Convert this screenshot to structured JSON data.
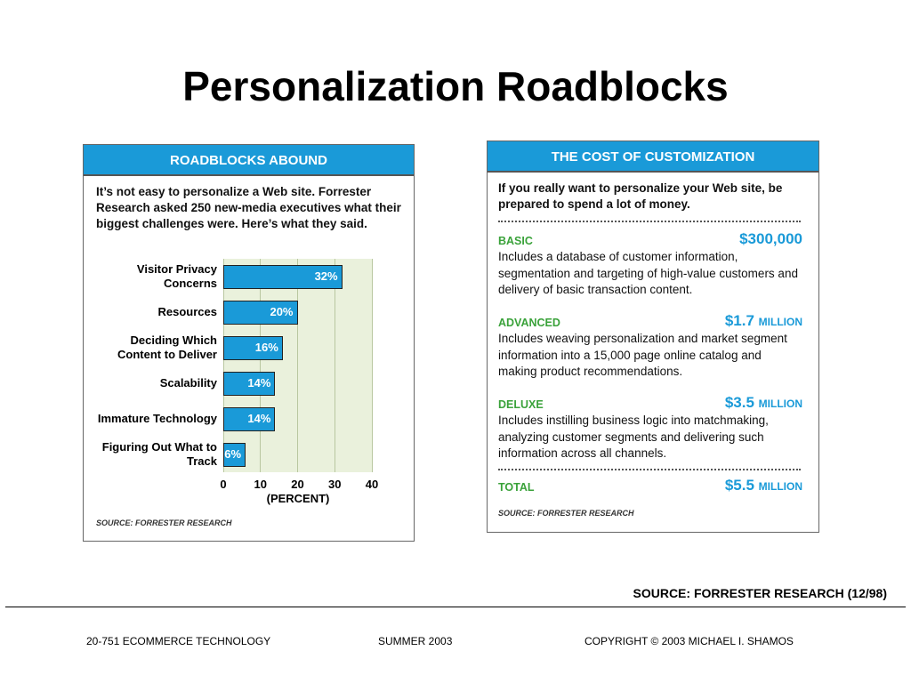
{
  "slide": {
    "title": "Personalization Roadblocks"
  },
  "chart_data": {
    "type": "bar",
    "orientation": "horizontal",
    "title": "ROADBLOCKS ABOUND",
    "subtitle": "It’s not easy to personalize a Web site. Forrester Research asked 250 new-media executives what their biggest challenges were. Here’s what they said.",
    "categories": [
      "Visitor Privacy Concerns",
      "Resources",
      "Deciding Which Content to Deliver",
      "Scalability",
      "Immature Technology",
      "Figuring Out What to Track"
    ],
    "values": [
      32,
      20,
      16,
      14,
      14,
      6
    ],
    "value_labels": [
      "32%",
      "20%",
      "16%",
      "14%",
      "14%",
      "6%"
    ],
    "color": "#1a9ad8",
    "xlim": [
      0,
      40
    ],
    "xticks": [
      0,
      10,
      20,
      30,
      40
    ],
    "xlabel": "(PERCENT)",
    "grid": true,
    "source": "SOURCE: FORRESTER RESEARCH"
  },
  "cost_panel": {
    "title": "THE COST OF CUSTOMIZATION",
    "intro": "If you really want to personalize your Web site, be prepared to spend a lot of money.",
    "items": [
      {
        "name": "BASIC",
        "amount": "$300,000",
        "description": "Includes a database of customer information, segmentation and targeting of high-value customers and delivery of basic transaction content."
      },
      {
        "name": "ADVANCED",
        "amount": "$1.7",
        "unit": "MILLION",
        "description": "Includes weaving personalization and market segment information into a 15,000 page online catalog and making product recommendations."
      },
      {
        "name": "DELUXE",
        "amount": "$3.5",
        "unit": "MILLION",
        "description": "Includes instilling business logic into matchmaking, analyzing customer segments and delivering such information across all channels."
      }
    ],
    "total": {
      "name": "TOTAL",
      "amount": "$5.5",
      "unit": "MILLION"
    },
    "source": "SOURCE: FORRESTER RESEARCH"
  },
  "slide_source": "SOURCE: FORRESTER RESEARCH (12/98)",
  "footer": {
    "course": "20-751 ECOMMERCE TECHNOLOGY",
    "term": "SUMMER 2003",
    "copyright": "COPYRIGHT © 2003 MICHAEL I. SHAMOS"
  }
}
